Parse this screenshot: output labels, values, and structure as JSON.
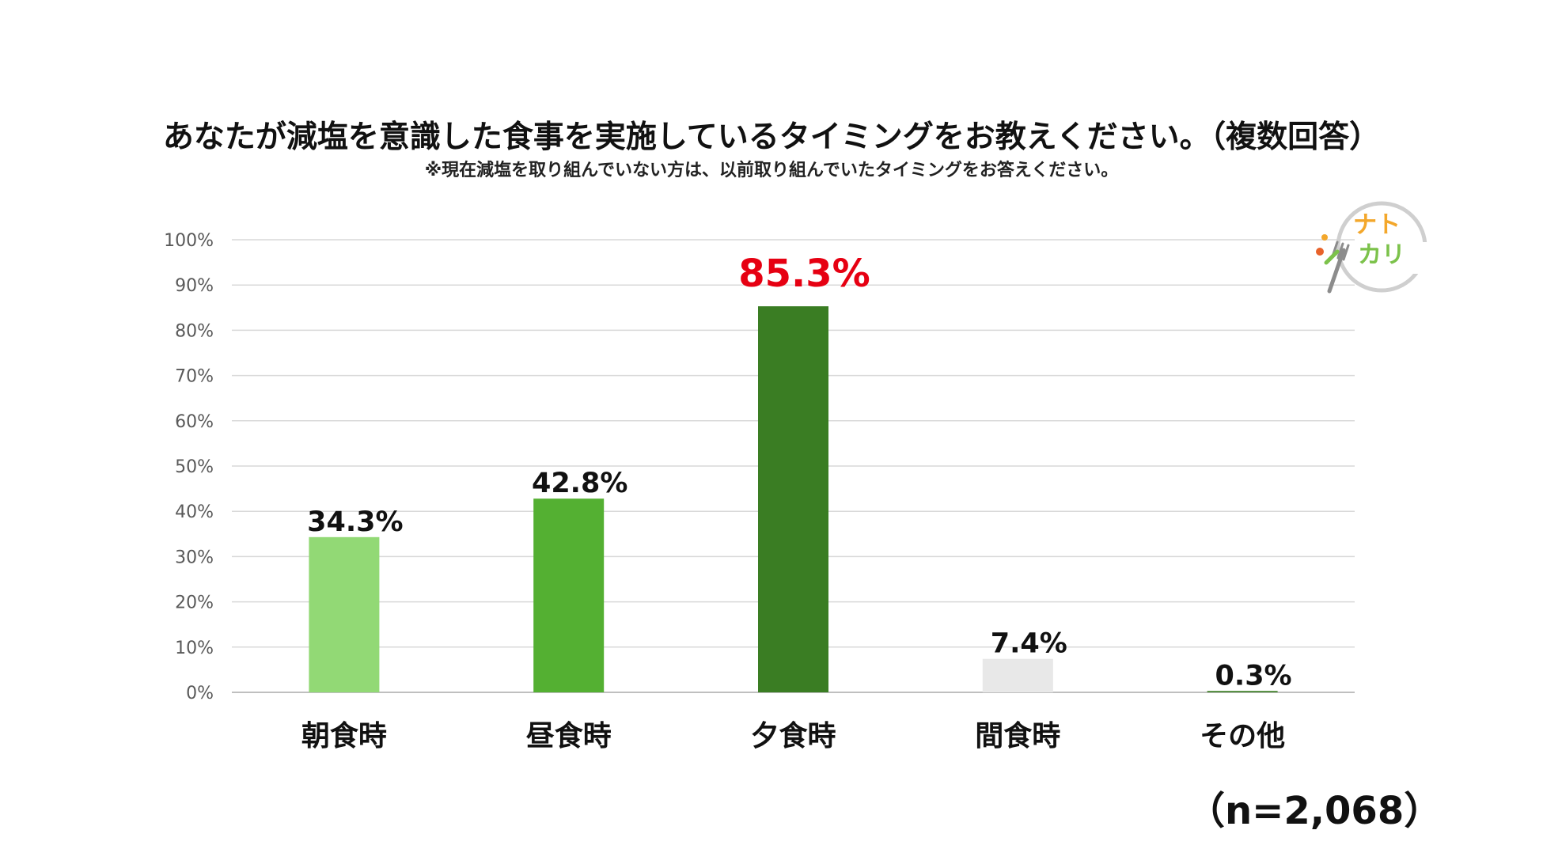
{
  "colors": {
    "highlight": "#e60012",
    "grid": "#d9d9d9",
    "axis": "#bfbfbf",
    "tick_text": "#595959",
    "label_text": "#111111"
  },
  "logo": {
    "text": "ナトカリ",
    "icon": "fork-vegetable-logo-icon"
  },
  "chart_data": {
    "type": "bar",
    "title": "あなたが減塩を意識した食事を実施しているタイミングをお教えください。（複数回答）",
    "subtitle": "※現在減塩を取り組んでいない方は、以前取り組んでいたタイミングをお答えください。",
    "categories": [
      "朝食時",
      "昼食時",
      "夕食時",
      "間食時",
      "その他"
    ],
    "values": [
      34.3,
      42.8,
      85.3,
      7.4,
      0.3
    ],
    "value_labels": [
      "34.3%",
      "42.8%",
      "85.3%",
      "7.4%",
      "0.3%"
    ],
    "bar_colors": [
      "#92d975",
      "#54b032",
      "#3a7d23",
      "#e8e8e8",
      "#3a7d23"
    ],
    "highlight_index": 2,
    "yticks": [
      0,
      10,
      20,
      30,
      40,
      50,
      60,
      70,
      80,
      90,
      100
    ],
    "ytick_labels": [
      "0%",
      "10%",
      "20%",
      "30%",
      "40%",
      "50%",
      "60%",
      "70%",
      "80%",
      "90%",
      "100%"
    ],
    "ylim": [
      0,
      100
    ],
    "grid": true,
    "xlabel": "",
    "ylabel": "",
    "sample_size": "（n=2,068）"
  }
}
